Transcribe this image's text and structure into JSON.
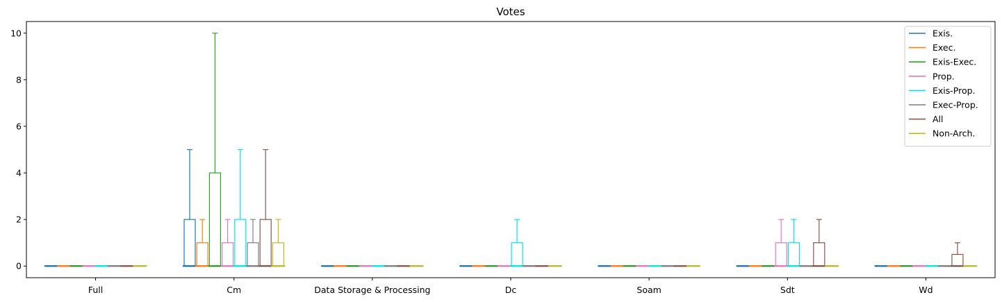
{
  "chart_data": {
    "type": "box",
    "title": "Votes",
    "xlabel": "",
    "ylabel": "",
    "ylim": [
      -0.5,
      10.5
    ],
    "yticks": [
      0,
      2,
      4,
      6,
      8,
      10
    ],
    "categories": [
      "Full",
      "Cm",
      "Data Storage & Processing",
      "Dc",
      "Soam",
      "Sdt",
      "Wd"
    ],
    "legend_position": "top-right",
    "grid": false,
    "series": [
      {
        "name": "Exis.",
        "color": "#1f77b4",
        "boxes": [
          {
            "q1": 0,
            "q3": 0,
            "whisker_high": 0
          },
          {
            "q1": 0,
            "q3": 2,
            "whisker_high": 5
          },
          {
            "q1": 0,
            "q3": 0,
            "whisker_high": 0
          },
          {
            "q1": 0,
            "q3": 0,
            "whisker_high": 0
          },
          {
            "q1": 0,
            "q3": 0,
            "whisker_high": 0
          },
          {
            "q1": 0,
            "q3": 0,
            "whisker_high": 0
          },
          {
            "q1": 0,
            "q3": 0,
            "whisker_high": 0
          }
        ]
      },
      {
        "name": "Exec.",
        "color": "#ff7f0e",
        "boxes": [
          {
            "q1": 0,
            "q3": 0,
            "whisker_high": 0
          },
          {
            "q1": 0,
            "q3": 1,
            "whisker_high": 2
          },
          {
            "q1": 0,
            "q3": 0,
            "whisker_high": 0
          },
          {
            "q1": 0,
            "q3": 0,
            "whisker_high": 0
          },
          {
            "q1": 0,
            "q3": 0,
            "whisker_high": 0
          },
          {
            "q1": 0,
            "q3": 0,
            "whisker_high": 0
          },
          {
            "q1": 0,
            "q3": 0,
            "whisker_high": 0
          }
        ]
      },
      {
        "name": "Exis-Exec.",
        "color": "#2ca02c",
        "boxes": [
          {
            "q1": 0,
            "q3": 0,
            "whisker_high": 0
          },
          {
            "q1": 0,
            "q3": 4,
            "whisker_high": 10
          },
          {
            "q1": 0,
            "q3": 0,
            "whisker_high": 0
          },
          {
            "q1": 0,
            "q3": 0,
            "whisker_high": 0
          },
          {
            "q1": 0,
            "q3": 0,
            "whisker_high": 0
          },
          {
            "q1": 0,
            "q3": 0,
            "whisker_high": 0
          },
          {
            "q1": 0,
            "q3": 0,
            "whisker_high": 0
          }
        ]
      },
      {
        "name": "Prop.",
        "color": "#e377c2",
        "boxes": [
          {
            "q1": 0,
            "q3": 0,
            "whisker_high": 0
          },
          {
            "q1": 0,
            "q3": 1,
            "whisker_high": 2
          },
          {
            "q1": 0,
            "q3": 0,
            "whisker_high": 0
          },
          {
            "q1": 0,
            "q3": 0,
            "whisker_high": 0
          },
          {
            "q1": 0,
            "q3": 0,
            "whisker_high": 0
          },
          {
            "q1": 0,
            "q3": 1,
            "whisker_high": 2
          },
          {
            "q1": 0,
            "q3": 0,
            "whisker_high": 0
          }
        ]
      },
      {
        "name": "Exis-Prop.",
        "color": "#00e5ee",
        "boxes": [
          {
            "q1": 0,
            "q3": 0,
            "whisker_high": 0
          },
          {
            "q1": 0,
            "q3": 2,
            "whisker_high": 5
          },
          {
            "q1": 0,
            "q3": 0,
            "whisker_high": 0
          },
          {
            "q1": 0,
            "q3": 1,
            "whisker_high": 2
          },
          {
            "q1": 0,
            "q3": 0,
            "whisker_high": 0
          },
          {
            "q1": 0,
            "q3": 1,
            "whisker_high": 2
          },
          {
            "q1": 0,
            "q3": 0,
            "whisker_high": 0
          }
        ]
      },
      {
        "name": "Exec-Prop.",
        "color": "#7f7f7f",
        "boxes": [
          {
            "q1": 0,
            "q3": 0,
            "whisker_high": 0
          },
          {
            "q1": 0,
            "q3": 1,
            "whisker_high": 2
          },
          {
            "q1": 0,
            "q3": 0,
            "whisker_high": 0
          },
          {
            "q1": 0,
            "q3": 0,
            "whisker_high": 0
          },
          {
            "q1": 0,
            "q3": 0,
            "whisker_high": 0
          },
          {
            "q1": 0,
            "q3": 0,
            "whisker_high": 0
          },
          {
            "q1": 0,
            "q3": 0,
            "whisker_high": 0
          }
        ]
      },
      {
        "name": "All",
        "color": "#8c564b",
        "boxes": [
          {
            "q1": 0,
            "q3": 0,
            "whisker_high": 0
          },
          {
            "q1": 0,
            "q3": 2,
            "whisker_high": 5
          },
          {
            "q1": 0,
            "q3": 0,
            "whisker_high": 0
          },
          {
            "q1": 0,
            "q3": 0,
            "whisker_high": 0
          },
          {
            "q1": 0,
            "q3": 0,
            "whisker_high": 0
          },
          {
            "q1": 0,
            "q3": 1,
            "whisker_high": 2
          },
          {
            "q1": 0,
            "q3": 0.5,
            "whisker_high": 1
          }
        ]
      },
      {
        "name": "Non-Arch.",
        "color": "#bcbd22",
        "boxes": [
          {
            "q1": 0,
            "q3": 0,
            "whisker_high": 0
          },
          {
            "q1": 0,
            "q3": 1,
            "whisker_high": 2
          },
          {
            "q1": 0,
            "q3": 0,
            "whisker_high": 0
          },
          {
            "q1": 0,
            "q3": 0,
            "whisker_high": 0
          },
          {
            "q1": 0,
            "q3": 0,
            "whisker_high": 0
          },
          {
            "q1": 0,
            "q3": 0,
            "whisker_high": 0
          },
          {
            "q1": 0,
            "q3": 0,
            "whisker_high": 0
          }
        ]
      }
    ]
  }
}
